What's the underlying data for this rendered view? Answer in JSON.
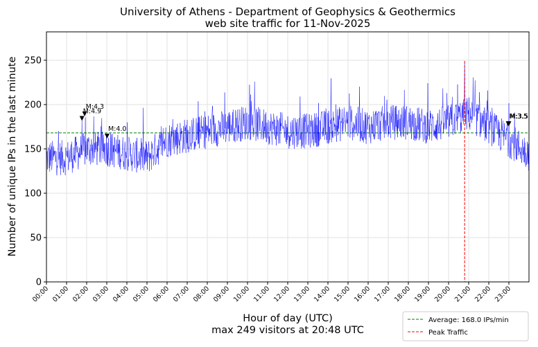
{
  "chart_data": {
    "type": "line",
    "title": "University of Athens - Department of Geophysics & Geothermics",
    "subtitle": "web site traffic for 11-Nov-2025",
    "xlabel": "Hour of day (UTC)",
    "xlabel2": "max 249 visitors at 20:48 UTC",
    "ylabel": "Number of unique IPs in the last minute",
    "xlim": [
      0,
      1440
    ],
    "ylim": [
      0,
      282
    ],
    "yticks": [
      0,
      50,
      100,
      150,
      200,
      250
    ],
    "xtick_labels": [
      "00:00",
      "01:00",
      "02:00",
      "03:00",
      "04:00",
      "05:00",
      "06:00",
      "07:00",
      "08:00",
      "09:00",
      "10:00",
      "11:00",
      "12:00",
      "13:00",
      "14:00",
      "15:00",
      "16:00",
      "17:00",
      "18:00",
      "19:00",
      "20:00",
      "21:00",
      "22:00",
      "23:00"
    ],
    "grid": true,
    "legend_position": "lower-right",
    "series": [
      {
        "color": "#0000ff",
        "profile_hourly": [
          {
            "hour": 0,
            "value": 140
          },
          {
            "hour": 1,
            "value": 140
          },
          {
            "hour": 2,
            "value": 150
          },
          {
            "hour": 3,
            "value": 150
          },
          {
            "hour": 4,
            "value": 145
          },
          {
            "hour": 5,
            "value": 140
          },
          {
            "hour": 6,
            "value": 160
          },
          {
            "hour": 7,
            "value": 165
          },
          {
            "hour": 8,
            "value": 170
          },
          {
            "hour": 9,
            "value": 175
          },
          {
            "hour": 10,
            "value": 180
          },
          {
            "hour": 11,
            "value": 175
          },
          {
            "hour": 12,
            "value": 170
          },
          {
            "hour": 13,
            "value": 170
          },
          {
            "hour": 14,
            "value": 175
          },
          {
            "hour": 15,
            "value": 180
          },
          {
            "hour": 16,
            "value": 175
          },
          {
            "hour": 17,
            "value": 180
          },
          {
            "hour": 18,
            "value": 180
          },
          {
            "hour": 19,
            "value": 175
          },
          {
            "hour": 20,
            "value": 180
          },
          {
            "hour": 21,
            "value": 190
          },
          {
            "hour": 22,
            "value": 175
          },
          {
            "hour": 23,
            "value": 160
          },
          {
            "hour": 24,
            "value": 145
          }
        ],
        "peak": {
          "time_min": 1248,
          "value": 249
        }
      }
    ],
    "average": {
      "value": 168.0,
      "color": "#008000",
      "label": "Average: 168.0 IPs/min"
    },
    "peak_line": {
      "time_min": 1248,
      "color": "#ff0000",
      "label": "Peak Traffic"
    },
    "earthquake_markers": [
      {
        "label": "M:4.9",
        "time_min": 106,
        "value": 184
      },
      {
        "label": "M:4.3",
        "time_min": 114,
        "value": 189
      },
      {
        "label": "M:4.0",
        "time_min": 181,
        "value": 164
      },
      {
        "label": "M:3.5",
        "time_min": 1378,
        "value": 178
      },
      {
        "label": "M:3.5",
        "time_min": 1380,
        "value": 178
      }
    ]
  }
}
